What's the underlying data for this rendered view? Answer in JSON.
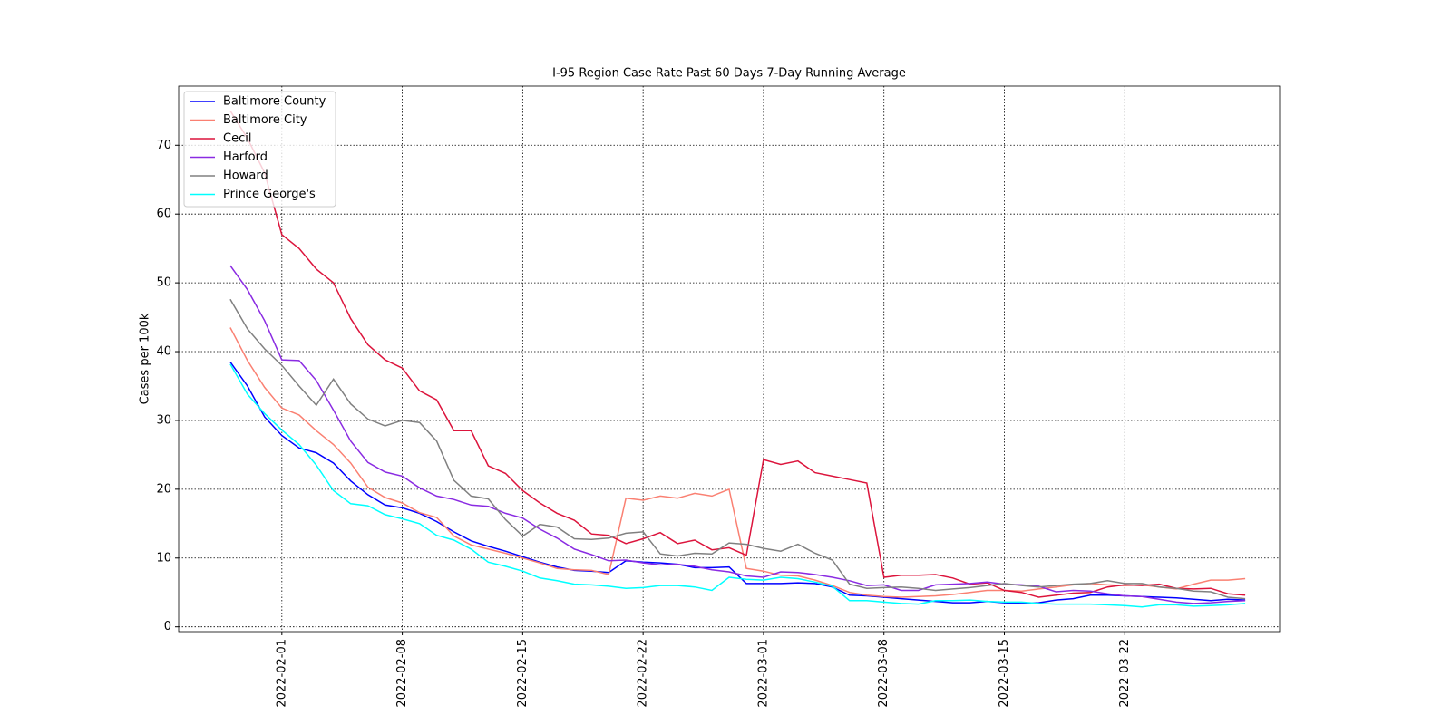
{
  "chart_data": {
    "type": "line",
    "title": "I-95 Region Case Rate  Past 60 Days 7-Day Running Average",
    "y_label": "Cases per 100k",
    "x": [
      "2022-01-29",
      "2022-01-30",
      "2022-01-31",
      "2022-02-01",
      "2022-02-02",
      "2022-02-03",
      "2022-02-04",
      "2022-02-05",
      "2022-02-06",
      "2022-02-07",
      "2022-02-08",
      "2022-02-09",
      "2022-02-10",
      "2022-02-11",
      "2022-02-12",
      "2022-02-13",
      "2022-02-14",
      "2022-02-15",
      "2022-02-16",
      "2022-02-17",
      "2022-02-18",
      "2022-02-19",
      "2022-02-20",
      "2022-02-21",
      "2022-02-22",
      "2022-02-23",
      "2022-02-24",
      "2022-02-25",
      "2022-02-26",
      "2022-02-27",
      "2022-02-28",
      "2022-03-01",
      "2022-03-02",
      "2022-03-03",
      "2022-03-04",
      "2022-03-05",
      "2022-03-06",
      "2022-03-07",
      "2022-03-08",
      "2022-03-09",
      "2022-03-10",
      "2022-03-11",
      "2022-03-12",
      "2022-03-13",
      "2022-03-14",
      "2022-03-15",
      "2022-03-16",
      "2022-03-17",
      "2022-03-18",
      "2022-03-19",
      "2022-03-20",
      "2022-03-21",
      "2022-03-22",
      "2022-03-23",
      "2022-03-24",
      "2022-03-25",
      "2022-03-26",
      "2022-03-27",
      "2022-03-28",
      "2022-03-29"
    ],
    "series": [
      {
        "name": "Baltimore County",
        "color": "#0000ff",
        "values": [
          38.5,
          35,
          30.5,
          27.8,
          26,
          25.3,
          23.8,
          21.2,
          19.2,
          17.7,
          17.3,
          16.5,
          15.3,
          13.8,
          12.5,
          11.7,
          11.0,
          10.2,
          9.4,
          8.7,
          8.2,
          8.1,
          7.9,
          9.6,
          9.4,
          9.3,
          9.1,
          8.6,
          8.6,
          8.7,
          6.3,
          6.3,
          6.3,
          6.4,
          6.3,
          5.8,
          4.6,
          4.5,
          4.3,
          4.1,
          3.9,
          3.7,
          3.5,
          3.5,
          3.7,
          3.5,
          3.4,
          3.5,
          3.9,
          4.1,
          4.6,
          4.6,
          4.5,
          4.4,
          4.3,
          4.2,
          4.0,
          3.8,
          4.0,
          3.9
        ]
      },
      {
        "name": "Baltimore City",
        "color": "#fa8072",
        "values": [
          43.5,
          38.7,
          34.8,
          31.8,
          30.8,
          28.5,
          26.5,
          23.8,
          20.3,
          18.8,
          18.0,
          16.6,
          15.9,
          13.2,
          11.9,
          11.3,
          10.7,
          10.0,
          9.3,
          8.5,
          8.3,
          8.2,
          7.6,
          18.7,
          18.4,
          19.0,
          18.7,
          19.4,
          19.0,
          20.0,
          8.5,
          8.1,
          7.5,
          7.4,
          6.8,
          6.0,
          5.0,
          4.6,
          4.4,
          4.3,
          4.4,
          4.5,
          4.7,
          5.0,
          5.3,
          5.3,
          5.2,
          5.5,
          5.8,
          6.1,
          6.3,
          6.1,
          6.0,
          6.1,
          5.8,
          5.5,
          6.2,
          6.8,
          6.8,
          7.0
        ]
      },
      {
        "name": "Cecil",
        "color": "#dc143c",
        "values": [
          75,
          71,
          66,
          57,
          55,
          52,
          50,
          44.8,
          41,
          38.8,
          37.6,
          34.3,
          33,
          28.5,
          28.5,
          23.4,
          22.3,
          19.8,
          18,
          16.5,
          15.5,
          13.5,
          13.3,
          12.1,
          12.8,
          13.7,
          12.1,
          12.6,
          11.2,
          11.5,
          10.4,
          24.3,
          23.6,
          24.1,
          22.4,
          21.9,
          21.4,
          20.9,
          7.2,
          7.5,
          7.5,
          7.6,
          7.1,
          6.2,
          6.4,
          5.3,
          5.0,
          4.3,
          4.6,
          4.9,
          5.0,
          5.8,
          6.1,
          6.0,
          6.2,
          5.6,
          5.5,
          5.6,
          4.8,
          4.6
        ]
      },
      {
        "name": "Harford",
        "color": "#8a2be2",
        "values": [
          52.5,
          49,
          44.5,
          38.8,
          38.7,
          35.8,
          31.5,
          27,
          23.9,
          22.5,
          21.9,
          20.2,
          19,
          18.5,
          17.7,
          17.5,
          16.5,
          15.8,
          14.2,
          12.9,
          11.3,
          10.5,
          9.6,
          9.7,
          9.3,
          9.0,
          9.1,
          8.8,
          8.3,
          8.0,
          7.4,
          7.2,
          8.0,
          7.9,
          7.6,
          7.2,
          6.7,
          6.0,
          6.1,
          5.3,
          5.3,
          6.1,
          6.2,
          6.3,
          6.5,
          6.2,
          6.1,
          5.9,
          5.1,
          5.3,
          5.2,
          4.8,
          4.5,
          4.4,
          4.0,
          3.6,
          3.4,
          3.5,
          3.7,
          3.8
        ]
      },
      {
        "name": "Howard",
        "color": "#808080",
        "values": [
          47.6,
          43.3,
          40.4,
          38,
          35,
          32.2,
          36,
          32.4,
          30.2,
          29.2,
          30,
          29.7,
          27,
          21.3,
          19,
          18.6,
          15.6,
          13.2,
          14.9,
          14.5,
          12.8,
          12.7,
          12.9,
          13.6,
          13.8,
          10.6,
          10.3,
          10.7,
          10.6,
          12.2,
          12.0,
          11.4,
          11.0,
          12.0,
          10.7,
          9.7,
          6.2,
          5.6,
          5.7,
          5.8,
          5.6,
          5.3,
          5.5,
          5.7,
          6.0,
          6.3,
          6.0,
          5.8,
          6.0,
          6.2,
          6.3,
          6.7,
          6.3,
          6.3,
          5.8,
          5.6,
          5.2,
          5.1,
          4.3,
          4.1
        ]
      },
      {
        "name": "Prince George's",
        "color": "#00ffff",
        "values": [
          38.2,
          33.8,
          31,
          28.6,
          26.5,
          23.5,
          19.8,
          17.9,
          17.6,
          16.3,
          15.7,
          15,
          13.3,
          12.6,
          11.3,
          9.4,
          8.8,
          8.1,
          7.1,
          6.7,
          6.2,
          6.1,
          5.9,
          5.6,
          5.7,
          6.0,
          6.0,
          5.8,
          5.3,
          7.2,
          6.9,
          6.8,
          7.2,
          7.0,
          6.5,
          5.9,
          3.8,
          3.8,
          3.6,
          3.4,
          3.3,
          3.8,
          3.8,
          3.9,
          3.7,
          3.6,
          3.6,
          3.4,
          3.3,
          3.3,
          3.3,
          3.2,
          3.1,
          2.9,
          3.2,
          3.2,
          3.0,
          3.1,
          3.2,
          3.4
        ]
      }
    ],
    "xlim": [
      "2022-01-26",
      "2022-03-31"
    ],
    "xticks": [
      "2022-02-01",
      "2022-02-08",
      "2022-02-15",
      "2022-02-22",
      "2022-03-01",
      "2022-03-08",
      "2022-03-15",
      "2022-03-22"
    ],
    "ylim": [
      -0.7,
      78.6
    ],
    "yticks": [
      0,
      10,
      20,
      30,
      40,
      50,
      60,
      70
    ],
    "grid": true,
    "legend": "upper left"
  }
}
